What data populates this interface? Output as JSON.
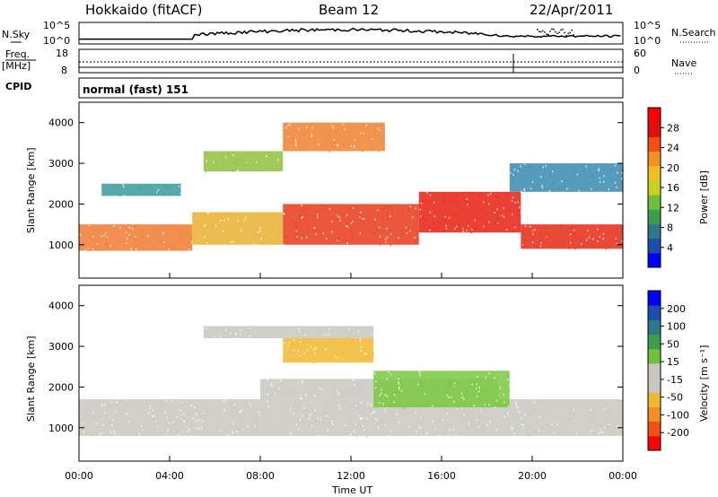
{
  "header": {
    "station": "Hokkaido (fitACF)",
    "beam": "Beam 12",
    "date": "22/Apr/2011"
  },
  "top_panels": {
    "nsky_label": "N.Sky",
    "nsearch_label": "N.Search",
    "noise_ticks": [
      "10^5",
      "10^0"
    ],
    "freq_label_1": "Freq.",
    "freq_label_2": "[MHz]",
    "freq_ticks": [
      "18",
      "8"
    ],
    "nave_label": "Nave",
    "nave_ticks": [
      "60",
      "0"
    ],
    "cpid_label": "CPID",
    "cpid_value": "normal (fast) 151"
  },
  "chart_data": [
    {
      "type": "heatmap",
      "name": "power",
      "ylabel": "Slant Range [km]",
      "yticks": [
        1000,
        2000,
        3000,
        4000
      ],
      "ylim": [
        180,
        4500
      ],
      "xlim": [
        0,
        24
      ],
      "colorbar_label": "Power [dB]",
      "colorbar_ticks": [
        "4",
        "8",
        "12",
        "16",
        "20",
        "24",
        "28"
      ],
      "colorbar_colors": [
        "#0000ff",
        "#1a4fb0",
        "#2a7a8a",
        "#3aa050",
        "#6fc03a",
        "#c8d020",
        "#f0c020",
        "#f29020",
        "#f05010",
        "#e01010",
        "#ff0000"
      ],
      "bands": [
        {
          "x0": 0.0,
          "x1": 5.0,
          "r0": 850,
          "r1": 1500,
          "color": "#f07a30"
        },
        {
          "x0": 5.0,
          "x1": 9.0,
          "r0": 1000,
          "r1": 1800,
          "color": "#e8b030"
        },
        {
          "x0": 9.0,
          "x1": 15.0,
          "r0": 1000,
          "r1": 2000,
          "color": "#e83a18"
        },
        {
          "x0": 15.0,
          "x1": 19.5,
          "r0": 1300,
          "r1": 2300,
          "color": "#e82010"
        },
        {
          "x0": 19.5,
          "x1": 24.0,
          "r0": 900,
          "r1": 1500,
          "color": "#e42a14"
        },
        {
          "x0": 1.0,
          "x1": 4.5,
          "r0": 2200,
          "r1": 2500,
          "color": "#3a9aa0"
        },
        {
          "x0": 5.5,
          "x1": 9.0,
          "r0": 2800,
          "r1": 3300,
          "color": "#90c040"
        },
        {
          "x0": 9.0,
          "x1": 13.5,
          "r0": 3300,
          "r1": 4000,
          "color": "#f08030"
        },
        {
          "x0": 19.0,
          "x1": 24.0,
          "r0": 2300,
          "r1": 3000,
          "color": "#3a8ab0"
        }
      ]
    },
    {
      "type": "heatmap",
      "name": "velocity",
      "ylabel": "Slant Range [km]",
      "xlabel": "Time UT",
      "yticks": [
        1000,
        2000,
        3000,
        4000
      ],
      "ylim": [
        180,
        4500
      ],
      "xlim": [
        0,
        24
      ],
      "xticks": [
        "00:00",
        "04:00",
        "08:00",
        "12:00",
        "16:00",
        "20:00",
        "00:00"
      ],
      "colorbar_label": "Velocity [m s⁻¹]",
      "colorbar_ticks": [
        "-200",
        "-100",
        "-50",
        "-15",
        "15",
        "50",
        "100",
        "200"
      ],
      "colorbar_colors": [
        "#ff0000",
        "#f05010",
        "#f09020",
        "#f0b830",
        "#c8c8c0",
        "#c8c8c0",
        "#6fc03a",
        "#3aa050",
        "#2a7a8a",
        "#1a4fb0",
        "#0000ff"
      ],
      "bands": [
        {
          "x0": 0.0,
          "x1": 24.0,
          "r0": 800,
          "r1": 1700,
          "color": "#c8c8c0"
        },
        {
          "x0": 8.0,
          "x1": 18.5,
          "r0": 1700,
          "r1": 2200,
          "color": "#c8c8c0"
        },
        {
          "x0": 13.0,
          "x1": 19.0,
          "r0": 1500,
          "r1": 2400,
          "color": "#7ac840"
        },
        {
          "x0": 5.5,
          "x1": 13.0,
          "r0": 3200,
          "r1": 3500,
          "color": "#c8c8c0"
        },
        {
          "x0": 9.0,
          "x1": 13.0,
          "r0": 2600,
          "r1": 3200,
          "color": "#f0b830"
        }
      ]
    }
  ]
}
